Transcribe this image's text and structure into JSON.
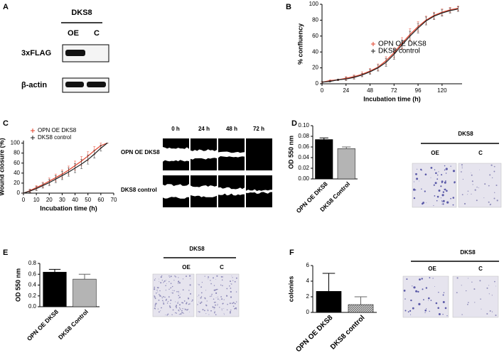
{
  "figure": {
    "letters": [
      "A",
      "B",
      "C",
      "D",
      "E",
      "F"
    ],
    "blot": {
      "title": "DKS8",
      "lanes": [
        "OE",
        "C"
      ],
      "rows": [
        "3xFLAG",
        "β-actin"
      ]
    },
    "scratch": {
      "times": [
        "0 h",
        "24 h",
        "48 h",
        "72 h"
      ],
      "rows": [
        "OPN OE DKS8",
        "DKS8 control"
      ]
    },
    "invasion": [
      {
        "title": "DKS8",
        "lanes": [
          "OE",
          "C"
        ]
      },
      {
        "title": "DKS8",
        "lanes": [
          "OE",
          "C"
        ]
      },
      {
        "title": "DKS8",
        "lanes": [
          "OE",
          "C"
        ]
      }
    ]
  },
  "chart_data": [
    {
      "type": "line",
      "xlabel": "Incubation time (h)",
      "ylabel": "% confluency",
      "x": [
        0,
        8,
        16,
        24,
        32,
        40,
        48,
        56,
        64,
        72,
        80,
        88,
        96,
        104,
        112,
        120,
        128,
        136
      ],
      "xlim": [
        0,
        140
      ],
      "xticks": [
        0,
        24,
        48,
        72,
        96,
        120
      ],
      "ylim": [
        0,
        100
      ],
      "yticks": [
        0,
        20,
        40,
        60,
        80,
        100
      ],
      "legend": "right",
      "series": [
        {
          "name": "OPN OE DKS8",
          "color": "#e0402a",
          "values": [
            2,
            4,
            5,
            7,
            9,
            12,
            16,
            21,
            29,
            39,
            51,
            62,
            72,
            80,
            86,
            90,
            93,
            95
          ],
          "errors": [
            1,
            1,
            1,
            2,
            2,
            3,
            3,
            4,
            5,
            6,
            7,
            7,
            6,
            5,
            4,
            4,
            3,
            3
          ]
        },
        {
          "name": "DKS8 control",
          "color": "#222222",
          "values": [
            2,
            3,
            5,
            6,
            8,
            11,
            15,
            20,
            27,
            37,
            49,
            60,
            70,
            79,
            85,
            89,
            92,
            94
          ],
          "errors": [
            1,
            1,
            1,
            2,
            2,
            2,
            3,
            4,
            5,
            6,
            6,
            6,
            6,
            5,
            4,
            4,
            3,
            3
          ]
        }
      ]
    },
    {
      "type": "line",
      "xlabel": "Incubation time (h)",
      "ylabel": "Wound closure (%)",
      "x": [
        0,
        5,
        10,
        15,
        20,
        25,
        30,
        35,
        40,
        45,
        50,
        55,
        60,
        65
      ],
      "xlim": [
        0,
        70
      ],
      "xticks": [
        0,
        10,
        20,
        30,
        40,
        50,
        60,
        70
      ],
      "ylim": [
        0,
        105
      ],
      "yticks": [
        0,
        20,
        40,
        60,
        80,
        100
      ],
      "legend": "upper left",
      "series": [
        {
          "name": "OPN OE DKS8",
          "color": "#e0402a",
          "values": [
            0,
            5,
            11,
            17,
            24,
            31,
            38,
            46,
            55,
            64,
            74,
            85,
            95,
            100
          ],
          "errors": [
            0,
            3,
            4,
            5,
            6,
            7,
            8,
            8,
            9,
            9,
            9,
            8,
            5,
            0
          ]
        },
        {
          "name": "DKS8 control",
          "color": "#222222",
          "values": [
            0,
            4,
            9,
            15,
            21,
            28,
            35,
            42,
            50,
            58,
            67,
            78,
            90,
            100
          ],
          "errors": [
            0,
            3,
            4,
            5,
            6,
            7,
            8,
            8,
            9,
            9,
            9,
            8,
            6,
            0
          ]
        }
      ]
    },
    {
      "type": "bar",
      "ylabel": "OD 550 nm",
      "categories": [
        "OPN OE DKS8",
        "DKS8 Control"
      ],
      "values": [
        0.074,
        0.057
      ],
      "errors": [
        0.003,
        0.003
      ],
      "colors": [
        "#000000",
        "#b4b4b4"
      ],
      "ylim": [
        0,
        0.1
      ],
      "yticks": [
        {
          "value": 0,
          "label": "0.00"
        },
        {
          "value": 0.02,
          "label": "0.02"
        },
        {
          "value": 0.04,
          "label": "0.04"
        },
        {
          "value": 0.06,
          "label": "0.06"
        },
        {
          "value": 0.08,
          "label": "0.08"
        },
        {
          "value": 0.1,
          "label": "0.10"
        }
      ]
    },
    {
      "type": "bar",
      "ylabel": "OD 550 nm",
      "categories": [
        "OPN OE DKS8",
        "DKS8 Control"
      ],
      "values": [
        0.64,
        0.51
      ],
      "errors": [
        0.05,
        0.09
      ],
      "colors": [
        "#000000",
        "#b4b4b4"
      ],
      "ylim": [
        0,
        0.8
      ],
      "yticks": [
        {
          "value": 0,
          "label": "0.0"
        },
        0.2,
        0.4,
        0.6,
        0.8
      ]
    },
    {
      "type": "bar",
      "ylabel": "colonies",
      "categories": [
        "OPN OE DKS8",
        "DKS8 control"
      ],
      "values": [
        2.7,
        1.0
      ],
      "errors": [
        2.3,
        1.0
      ],
      "colors": [
        "#000000",
        "#a0a0a0"
      ],
      "hatch": [
        false,
        true
      ],
      "ylim": [
        0,
        6
      ],
      "yticks": [
        0,
        2,
        4,
        6
      ]
    }
  ]
}
